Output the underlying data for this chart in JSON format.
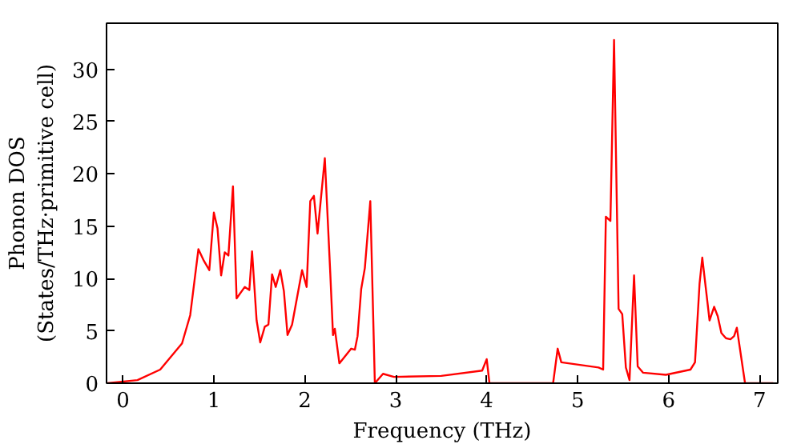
{
  "chart_data": {
    "type": "line",
    "xlabel": "Frequency (THz)",
    "ylabel": "Phonon DOS\n(States/THz·primitive cell)",
    "xlim": [
      -0.18,
      7.2
    ],
    "ylim": [
      0,
      34.4
    ],
    "xticks": [
      0,
      1,
      2,
      3,
      4,
      5,
      6,
      7
    ],
    "yticks": [
      0,
      5,
      10,
      15,
      20,
      25,
      30
    ],
    "grid": false,
    "series": [
      {
        "color": "#ff0000",
        "x": [
          -0.17,
          0.16,
          0.41,
          0.65,
          0.74,
          0.83,
          0.89,
          0.95,
          1.0,
          1.04,
          1.08,
          1.12,
          1.16,
          1.21,
          1.25,
          1.34,
          1.39,
          1.42,
          1.47,
          1.51,
          1.56,
          1.6,
          1.64,
          1.68,
          1.73,
          1.77,
          1.81,
          1.86,
          1.97,
          2.02,
          2.06,
          2.1,
          2.14,
          2.22,
          2.28,
          2.31,
          2.33,
          2.38,
          2.51,
          2.55,
          2.58,
          2.62,
          2.66,
          2.72,
          2.77,
          2.86,
          2.98,
          3.5,
          3.95,
          4.0,
          4.03,
          4.73,
          4.78,
          4.82,
          5.23,
          5.28,
          5.31,
          5.36,
          5.4,
          5.45,
          5.49,
          5.53,
          5.57,
          5.62,
          5.66,
          5.72,
          5.97,
          6.24,
          6.29,
          6.34,
          6.37,
          6.41,
          6.45,
          6.5,
          6.54,
          6.58,
          6.63,
          6.68,
          6.72,
          6.75,
          6.84,
          7.15
        ],
        "values": [
          0,
          0.3,
          1.3,
          3.8,
          6.5,
          12.8,
          11.7,
          10.8,
          16.3,
          14.8,
          10.3,
          12.5,
          12.2,
          18.8,
          8.1,
          9.2,
          8.9,
          12.6,
          6,
          3.9,
          5.4,
          5.6,
          10.4,
          9.2,
          10.8,
          8.8,
          4.6,
          5.6,
          10.8,
          9.2,
          17.4,
          17.9,
          14.3,
          21.5,
          10.5,
          4.6,
          5.2,
          1.9,
          3.3,
          3.2,
          4.5,
          9,
          11,
          17.4,
          0,
          0.9,
          0.6,
          0.7,
          1.2,
          2.3,
          0,
          0,
          3.3,
          2,
          1.5,
          1.3,
          15.9,
          15.5,
          32.8,
          7.1,
          6.6,
          1.5,
          0.3,
          10.3,
          1.6,
          1,
          0.8,
          1.3,
          2,
          9.5,
          12,
          9,
          6,
          7.3,
          6.4,
          4.8,
          4.3,
          4.2,
          4.5,
          5.3,
          0,
          0
        ]
      }
    ]
  }
}
